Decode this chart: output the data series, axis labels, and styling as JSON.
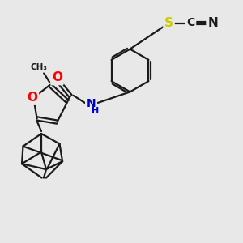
{
  "background_color": "#e8e8e8",
  "atom_colors": {
    "O": "#ff0000",
    "N": "#0000cd",
    "S": "#cccc00",
    "C": "#1a1a1a",
    "H": "#1a1a1a"
  },
  "bond_color": "#1a1a1a",
  "bond_width": 1.6,
  "font_size_atom": 10,
  "title": ""
}
